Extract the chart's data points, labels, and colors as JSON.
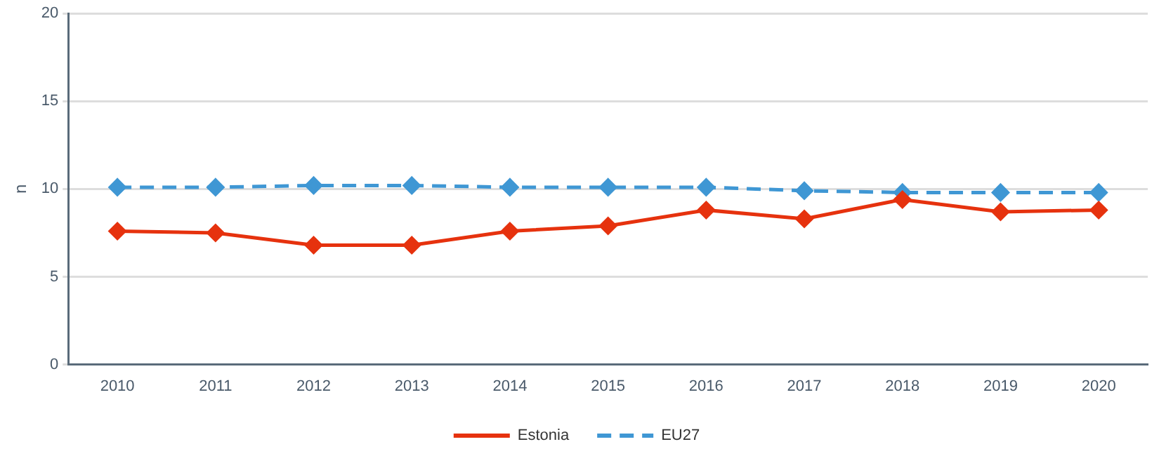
{
  "chart_data": {
    "type": "line",
    "ylabel": "n",
    "categories": [
      "2010",
      "2011",
      "2012",
      "2013",
      "2014",
      "2015",
      "2016",
      "2017",
      "2018",
      "2019",
      "2020"
    ],
    "series": [
      {
        "name": "Estonia",
        "color": "#e6320e",
        "line_style": "solid",
        "values": [
          7.6,
          7.5,
          6.8,
          6.8,
          7.6,
          7.9,
          8.8,
          8.3,
          9.4,
          8.7,
          8.8
        ]
      },
      {
        "name": "EU27",
        "color": "#3f97d4",
        "line_style": "dashed",
        "values": [
          10.1,
          10.1,
          10.2,
          10.2,
          10.1,
          10.1,
          10.1,
          9.9,
          9.8,
          9.8,
          9.8
        ]
      }
    ],
    "ylim": [
      0,
      20
    ],
    "yticks": [
      0,
      5,
      10,
      15,
      20
    ],
    "grid": "y",
    "legend": "bottom",
    "marker": "diamond"
  }
}
